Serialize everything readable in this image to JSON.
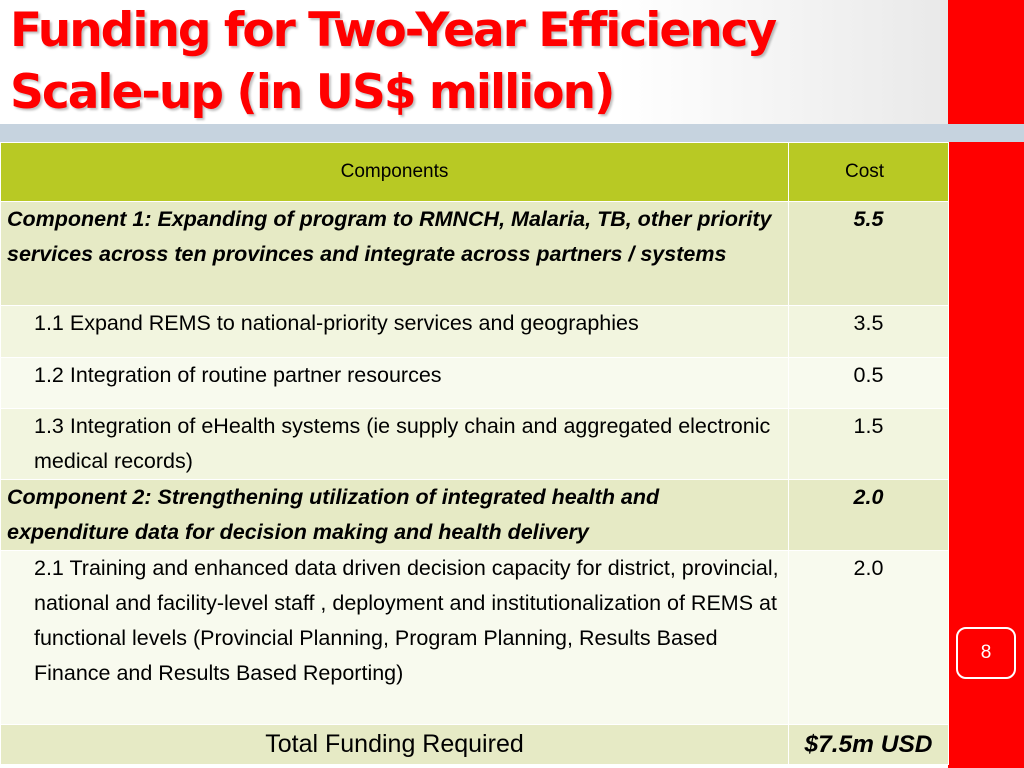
{
  "slide": {
    "title_line1": "Funding for Two-Year Efficiency",
    "title_line2": "Scale-up (in US$ million)",
    "page_number": "8"
  },
  "colors": {
    "title": "#ff0000",
    "side_bar": "#ff0000",
    "header_row": "#b8c924",
    "component_row": "#e6eac5",
    "rule": "#c6d3df"
  },
  "table": {
    "headers": {
      "components": "Components",
      "cost": "Cost"
    },
    "rows": [
      {
        "type": "component",
        "label": "Component 1: Expanding of program to RMNCH, Malaria, TB, other priority services across ten provinces and integrate across partners / systems",
        "cost": "5.5"
      },
      {
        "type": "sub",
        "label": "1.1 Expand REMS to national-priority services and geographies",
        "cost": "3.5"
      },
      {
        "type": "sub",
        "label": "1.2 Integration of routine partner resources",
        "cost": "0.5"
      },
      {
        "type": "sub",
        "label": "1.3  Integration of eHealth systems (ie supply chain and aggregated electronic medical records)",
        "cost": "1.5"
      },
      {
        "type": "component",
        "label": "Component 2: Strengthening utilization of integrated health and expenditure data for decision making and health delivery",
        "cost": "2.0"
      },
      {
        "type": "sub",
        "label": "2.1 Training and enhanced data driven decision capacity for district, provincial, national and facility-level staff , deployment and institutionalization of REMS at functional levels (Provincial Planning, Program Planning, Results Based Finance and Results Based Reporting)",
        "cost": "2.0"
      }
    ],
    "total": {
      "label": "Total Funding Required",
      "cost": "$7.5m USD"
    }
  }
}
